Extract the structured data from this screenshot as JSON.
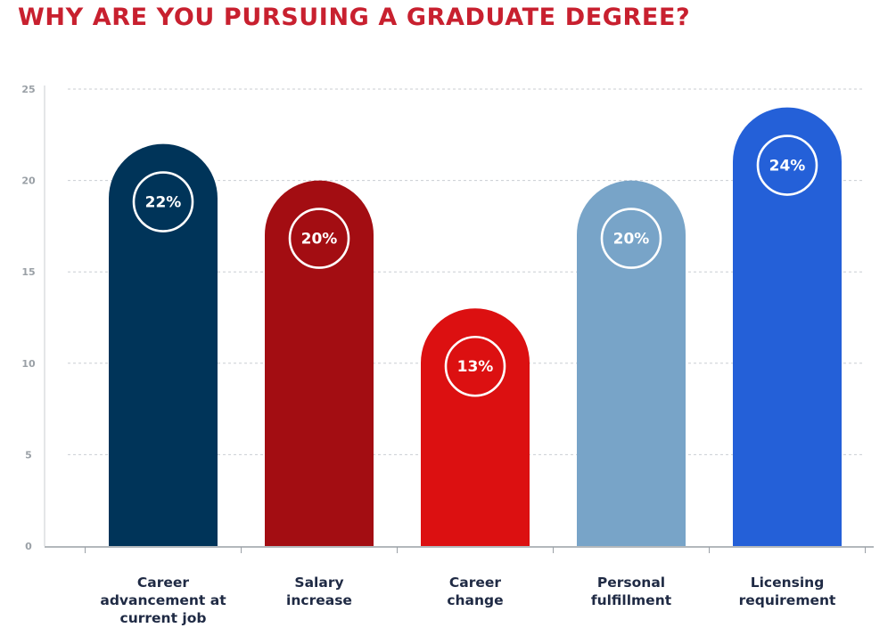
{
  "chart_data": {
    "type": "bar",
    "title": "WHY ARE YOU PURSUING A GRADUATE DEGREE?",
    "categories": [
      [
        "Career",
        "advancement at",
        "current job"
      ],
      [
        "Salary",
        "increase"
      ],
      [
        "Career",
        "change"
      ],
      [
        "Personal",
        "fulfillment"
      ],
      [
        "Licensing",
        "requirement"
      ]
    ],
    "values": [
      22,
      20,
      13,
      20,
      24
    ],
    "value_labels": [
      "22%",
      "20%",
      "13%",
      "20%",
      "24%"
    ],
    "colors": [
      "#003459",
      "#a30d12",
      "#dc1011",
      "#78a4c8",
      "#2460d8"
    ],
    "y_ticks": [
      "0",
      "5",
      "10",
      "15",
      "20",
      "25"
    ],
    "ylim": [
      0,
      25
    ],
    "grid": true,
    "legend": "none"
  }
}
